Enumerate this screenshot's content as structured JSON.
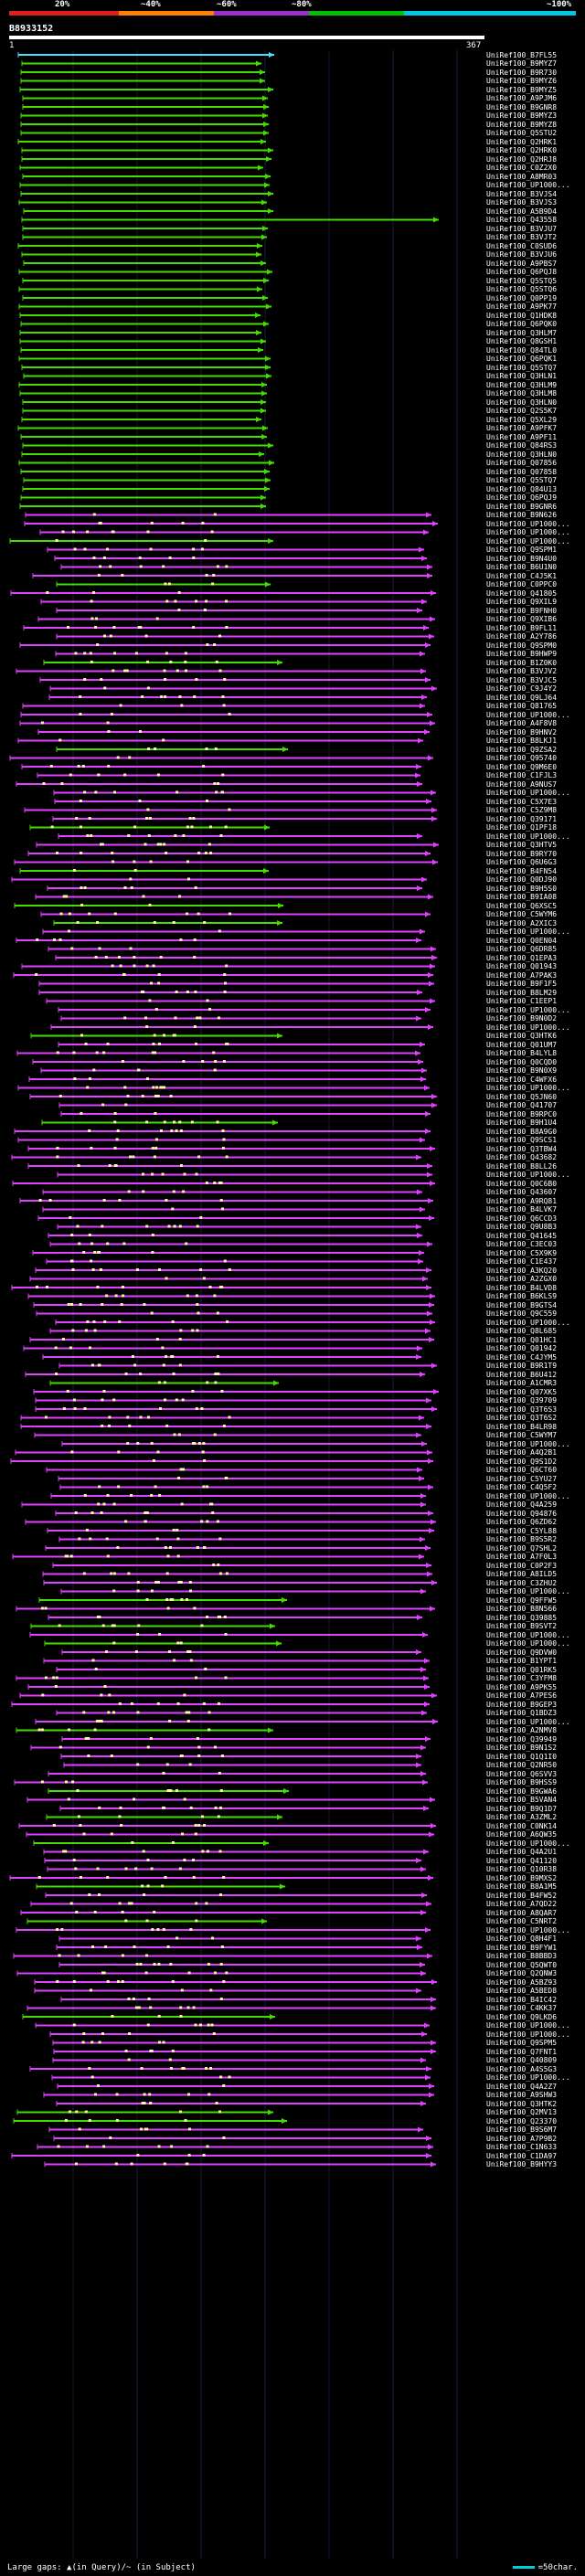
{
  "scale": {
    "labels": [
      "20%",
      "~40%",
      "~60%",
      "~80%",
      "~100%"
    ],
    "segment_colors": [
      "#e01e1e",
      "#ff7f00",
      "#9932cc",
      "#00c000",
      "#00c8e0"
    ]
  },
  "query": {
    "id": "B8933152",
    "start": "1",
    "end": "367"
  },
  "legend": {
    "gaps_text": "Large gaps: ▲(in Query)/~ (in Subject)",
    "scale_text": "=50char."
  },
  "colors": {
    "green": "#44dd00",
    "magenta": "#e040ff",
    "cyan": "#40e0ff",
    "orange": "#ff9a00",
    "marker": "#fff7b0"
  },
  "hits": [
    "UniRef100_B7FL55",
    "UniRef100_B9MYZ7",
    "UniRef100_B9R730",
    "UniRef100_B9MYZ6",
    "UniRef100_B9MYZ5",
    "UniRef100_A9PJM6",
    "UniRef100_B9GNR8",
    "UniRef100_B9MYZ3",
    "UniRef100_B9MYZ8",
    "UniRef100_Q5STU2",
    "UniRef100_Q2HRK1",
    "UniRef100_Q2HRK0",
    "UniRef100_Q2HRJ8",
    "UniRef100_C0Z2X0",
    "UniRef100_A8MR03",
    "UniRef100_UP1000...",
    "UniRef100_B3VJS4",
    "UniRef100_B3VJS3",
    "UniRef100_A5B9D4",
    "UniRef100_Q43558",
    "UniRef100_B3VJU7",
    "UniRef100_B3VJT2",
    "UniRef100_C0SUD6",
    "UniRef100_B3VJU6",
    "UniRef100_A9PBS7",
    "UniRef100_Q6PQJ8",
    "UniRef100_Q5STQ5",
    "UniRef100_Q5STQ6",
    "UniRef100_Q0PP19",
    "UniRef100_A9PK77",
    "UniRef100_Q1HDK8",
    "UniRef100_Q6PQK0",
    "UniRef100_Q3HLM7",
    "UniRef100_Q8GSH1",
    "UniRef100_Q84TL0",
    "UniRef100_Q6PQK1",
    "UniRef100_Q5STQ7",
    "UniRef100_Q3HLN1",
    "UniRef100_Q3HLM9",
    "UniRef100_Q3HLM8",
    "UniRef100_Q3HLN0",
    "UniRef100_Q2S5K7",
    "UniRef100_Q5XL29",
    "UniRef100_A9PFK7",
    "UniRef100_A9PF11",
    "UniRef100_Q84RS3",
    "UniRef100_Q3HLN0",
    "UniRef100_Q07856",
    "UniRef100_Q07858",
    "UniRef100_Q5STQ7",
    "UniRef100_Q84U13",
    "UniRef100_Q6PQJ9",
    "UniRef100_B9GNR6",
    "UniRef100_B9N626",
    "UniRef100_UP1000...",
    "UniRef100_UP1000...",
    "UniRef100_UP1000...",
    "UniRef100_Q9SPM1",
    "UniRef100_B9N4U0",
    "UniRef100_B6U1N0",
    "UniRef100_C4J5K1",
    "UniRef100_C0PPC0",
    "UniRef100_Q41805",
    "UniRef100_Q9XIL9",
    "UniRef100_B9FNH0",
    "UniRef100_Q9XIB6",
    "UniRef100_B9FL11",
    "UniRef100_A2Y786",
    "UniRef100_Q9SPM0",
    "UniRef100_B9HWP9",
    "UniRef100_B1Z0K0",
    "UniRef100_B3VJV2",
    "UniRef100_B3VJC5",
    "UniRef100_C9J4Y2",
    "UniRef100_Q9LJ64",
    "UniRef100_Q81765",
    "UniRef100_UP1000...",
    "UniRef100_A4F8V8",
    "UniRef100_B9HNV2",
    "UniRef100_B8LKJ1",
    "UniRef100_Q9ZSA2",
    "UniRef100_Q95740",
    "UniRef100_Q9M6E0",
    "UniRef100_C1FJL3",
    "UniRef100_A9NUS7",
    "UniRef100_UP1000...",
    "UniRef100_C5X7E3",
    "UniRef100_C5Z9M8",
    "UniRef100_Q39171",
    "UniRef100_Q1PF18",
    "UniRef100_UP1000...",
    "UniRef100_Q3HTV5",
    "UniRef100_B9RY70",
    "UniRef100_Q6U6G3",
    "UniRef100_B4FN54",
    "UniRef100_Q0DJ90",
    "UniRef100_B9H5S0",
    "UniRef100_B9IA08",
    "UniRef100_Q6XSC5",
    "UniRef100_C5WYM6",
    "UniRef100_A2XIC3",
    "UniRef100_UP1000...",
    "UniRef100_Q0EN04",
    "UniRef100_Q6DR85",
    "UniRef100_Q1EPA3",
    "UniRef100_Q01943",
    "UniRef100_A7PAK3",
    "UniRef100_B9F1F5",
    "UniRef100_B8LM29",
    "UniRef100_C1EEP1",
    "UniRef100_UP1000...",
    "UniRef100_B9N0D2",
    "UniRef100_UP1000...",
    "UniRef100_Q3HTK6",
    "UniRef100_Q01UM7",
    "UniRef100_B4LYL8",
    "UniRef100_Q0CQD0",
    "UniRef100_B9N0X9",
    "UniRef100_C4WFX6",
    "UniRef100_UP1000...",
    "UniRef100_Q5JN60",
    "UniRef100_Q41707",
    "UniRef100_B9RPC0",
    "UniRef100_B9H1U4",
    "UniRef100_B8A9G0",
    "UniRef100_Q9SCS1",
    "UniRef100_Q3TBW4",
    "UniRef100_Q43682",
    "UniRef100_B8LL26",
    "UniRef100_UP1000...",
    "UniRef100_Q0C6B0",
    "UniRef100_Q43607",
    "UniRef100_A9RQ81",
    "UniRef100_B4LVK7",
    "UniRef100_Q6CCD3",
    "UniRef100_Q9U8B3",
    "UniRef100_Q41645",
    "UniRef100_C3EC03",
    "UniRef100_C5X9K9",
    "UniRef100_C1E437",
    "UniRef100_A3KQ20",
    "UniRef100_A2ZGX0",
    "UniRef100_B4LVD8",
    "UniRef100_B6KLS9",
    "UniRef100_B9GTS4",
    "UniRef100_Q9C559",
    "UniRef100_UP1000...",
    "UniRef100_Q8L685",
    "UniRef100_Q01HC1",
    "UniRef100_Q01942",
    "UniRef100_C4JYM5",
    "UniRef100_B9R1T9",
    "UniRef100_B6U412",
    "UniRef100_A1CMR3",
    "UniRef100_Q07XK5",
    "UniRef100_Q39709",
    "UniRef100_Q3T6S3",
    "UniRef100_Q3T6S2",
    "UniRef100_B4LR98",
    "UniRef100_C5WYM7",
    "UniRef100_UP1000...",
    "UniRef100_A4Q2B1",
    "UniRef100_Q9S1D2",
    "UniRef100_Q6CT60",
    "UniRef100_C5YU27",
    "UniRef100_C4Q5F2",
    "UniRef100_UP1000...",
    "UniRef100_Q4A259",
    "UniRef100_Q94876",
    "UniRef100_Q6ZD62",
    "UniRef100_C5YL88",
    "UniRef100_B9S5R2",
    "UniRef100_Q7SHL2",
    "UniRef100_A7F0L3",
    "UniRef100_C0P2F3",
    "UniRef100_A8ILD5",
    "UniRef100_C3ZHU2",
    "UniRef100_UP1000...",
    "UniRef100_Q9FFW5",
    "UniRef100_B8N566",
    "UniRef100_Q39885",
    "UniRef100_B9SVT2",
    "UniRef100_UP1000...",
    "UniRef100_UP1000...",
    "UniRef100_Q9DVW0",
    "UniRef100_B1YPT1",
    "UniRef100_Q01RK5",
    "UniRef100_C3YFM8",
    "UniRef100_A9PK55",
    "UniRef100_A7PES6",
    "UniRef100_B9GEP3",
    "UniRef100_Q1BDZ3",
    "UniRef100_UP1000...",
    "UniRef100_A2NMV8",
    "UniRef100_Q39949",
    "UniRef100_B9N1S2",
    "UniRef100_Q1Q1I0",
    "UniRef100_Q2NR50",
    "UniRef100_Q6SVV3",
    "UniRef100_B9HSS9",
    "UniRef100_B9GWA6",
    "UniRef100_B5VAN4",
    "UniRef100_B9Q1D7",
    "UniRef100_A3ZML2",
    "UniRef100_C0NK14",
    "UniRef100_A6QW35",
    "UniRef100_UP1000...",
    "UniRef100_Q4A2U1",
    "UniRef100_Q41120",
    "UniRef100_Q10R38",
    "UniRef100_B9MXS2",
    "UniRef100_B8A1M5",
    "UniRef100_B4FW52",
    "UniRef100_A7QD22",
    "UniRef100_A8QAR7",
    "UniRef100_C5NRT2",
    "UniRef100_UP1000...",
    "UniRef100_Q8H4F1",
    "UniRef100_B9FYW1",
    "UniRef100_B8BBD3",
    "UniRef100_Q5QWT0",
    "UniRef100_Q2QNW3",
    "UniRef100_A5BZ93",
    "UniRef100_A5BED8",
    "UniRef100_B4IC42",
    "UniRef100_C4KK37",
    "UniRef100_Q9LKD6",
    "UniRef100_UP1000...",
    "UniRef100_UP1000...",
    "UniRef100_Q9SPM5",
    "UniRef100_Q7FNT1",
    "UniRef100_Q40809",
    "UniRef100_A4S5G3",
    "UniRef100_UP1000...",
    "UniRef100_Q4A2Z7",
    "UniRef100_A9SHW3",
    "UniRef100_Q3HTK2",
    "UniRef100_Q2MV13",
    "UniRef100_Q23370",
    "UniRef100_B9S6M7",
    "UniRef100_A7P9B2",
    "UniRef100_C1N633",
    "UniRef100_C1DA97",
    "UniRef100_B9HYY3"
  ]
}
